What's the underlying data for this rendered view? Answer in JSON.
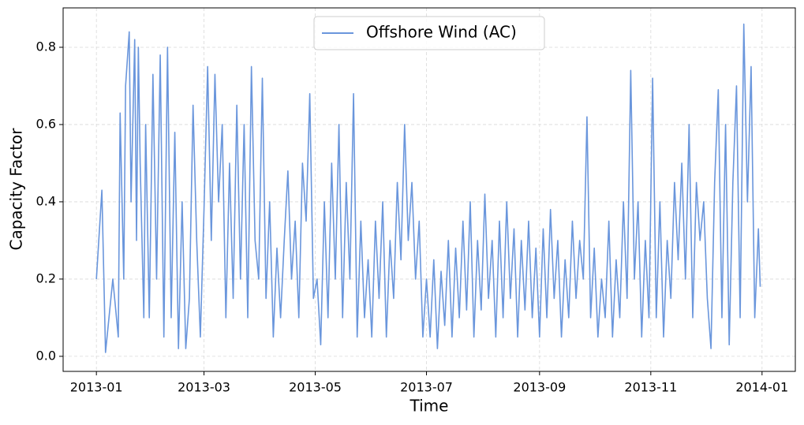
{
  "chart_data": {
    "type": "line",
    "xlabel": "Time",
    "ylabel": "Capacity Factor",
    "x": [
      0,
      3,
      5,
      9,
      12,
      13,
      15,
      16,
      18,
      19,
      21,
      22,
      23,
      24,
      26,
      27,
      29,
      31,
      33,
      35,
      37,
      39,
      41,
      43,
      45,
      47,
      49,
      51,
      53,
      55,
      57,
      59,
      61,
      63,
      65,
      67,
      69,
      71,
      73,
      75,
      77,
      79,
      81,
      83,
      85,
      87,
      89,
      91,
      93,
      95,
      97,
      99,
      101,
      103,
      105,
      107,
      109,
      111,
      113,
      115,
      117,
      119,
      121,
      123,
      125,
      127,
      129,
      131,
      133,
      135,
      137,
      139,
      141,
      143,
      145,
      147,
      149,
      151,
      153,
      155,
      157,
      159,
      161,
      163,
      165,
      167,
      169,
      171,
      173,
      175,
      177,
      179,
      181,
      183,
      185,
      187,
      189,
      191,
      193,
      195,
      197,
      199,
      201,
      203,
      205,
      207,
      209,
      211,
      213,
      215,
      217,
      219,
      221,
      223,
      225,
      227,
      229,
      231,
      233,
      235,
      237,
      239,
      241,
      243,
      245,
      247,
      249,
      251,
      253,
      255,
      257,
      259,
      261,
      263,
      265,
      267,
      269,
      271,
      273,
      275,
      277,
      279,
      281,
      283,
      285,
      287,
      289,
      291,
      293,
      295,
      297,
      299,
      301,
      303,
      305,
      307,
      309,
      311,
      313,
      315,
      317,
      319,
      321,
      323,
      325,
      327,
      329,
      331,
      333,
      335,
      337,
      339,
      341,
      343,
      345,
      347,
      349,
      351,
      353,
      355,
      357,
      359,
      361,
      363,
      364
    ],
    "series": [
      {
        "name": "Offshore Wind (AC)",
        "color": "#6a96dc",
        "values": [
          0.2,
          0.43,
          0.01,
          0.2,
          0.05,
          0.63,
          0.2,
          0.7,
          0.84,
          0.4,
          0.82,
          0.3,
          0.8,
          0.5,
          0.1,
          0.6,
          0.1,
          0.73,
          0.2,
          0.78,
          0.05,
          0.8,
          0.1,
          0.58,
          0.02,
          0.4,
          0.02,
          0.15,
          0.65,
          0.3,
          0.05,
          0.38,
          0.75,
          0.3,
          0.73,
          0.4,
          0.6,
          0.1,
          0.5,
          0.15,
          0.65,
          0.2,
          0.6,
          0.1,
          0.75,
          0.3,
          0.2,
          0.72,
          0.15,
          0.4,
          0.05,
          0.28,
          0.1,
          0.3,
          0.48,
          0.2,
          0.35,
          0.1,
          0.5,
          0.35,
          0.68,
          0.15,
          0.2,
          0.03,
          0.4,
          0.1,
          0.5,
          0.2,
          0.6,
          0.1,
          0.45,
          0.2,
          0.68,
          0.05,
          0.35,
          0.1,
          0.25,
          0.05,
          0.35,
          0.15,
          0.4,
          0.05,
          0.3,
          0.15,
          0.45,
          0.25,
          0.6,
          0.3,
          0.45,
          0.2,
          0.35,
          0.05,
          0.2,
          0.05,
          0.25,
          0.02,
          0.22,
          0.08,
          0.3,
          0.05,
          0.28,
          0.1,
          0.35,
          0.12,
          0.4,
          0.05,
          0.3,
          0.12,
          0.42,
          0.15,
          0.3,
          0.05,
          0.35,
          0.1,
          0.4,
          0.15,
          0.33,
          0.05,
          0.3,
          0.12,
          0.35,
          0.1,
          0.28,
          0.05,
          0.33,
          0.1,
          0.38,
          0.15,
          0.3,
          0.05,
          0.25,
          0.1,
          0.35,
          0.15,
          0.3,
          0.2,
          0.62,
          0.1,
          0.28,
          0.05,
          0.2,
          0.1,
          0.35,
          0.05,
          0.25,
          0.1,
          0.4,
          0.15,
          0.74,
          0.2,
          0.4,
          0.05,
          0.3,
          0.1,
          0.72,
          0.1,
          0.4,
          0.05,
          0.3,
          0.15,
          0.45,
          0.25,
          0.5,
          0.2,
          0.6,
          0.1,
          0.45,
          0.3,
          0.4,
          0.15,
          0.02,
          0.45,
          0.69,
          0.1,
          0.6,
          0.03,
          0.45,
          0.7,
          0.1,
          0.86,
          0.4,
          0.75,
          0.1,
          0.33,
          0.18
        ]
      }
    ],
    "xlim": [
      -18.25,
      383.25
    ],
    "xticks": [
      {
        "value": 0,
        "label": "2013-01"
      },
      {
        "value": 59,
        "label": "2013-03"
      },
      {
        "value": 120,
        "label": "2013-05"
      },
      {
        "value": 181,
        "label": "2013-07"
      },
      {
        "value": 243,
        "label": "2013-09"
      },
      {
        "value": 304,
        "label": "2013-11"
      },
      {
        "value": 365,
        "label": "2014-01"
      }
    ],
    "ylim": [
      -0.039,
      0.902
    ],
    "yticks": [
      {
        "value": 0,
        "label": "0.0"
      },
      0.2,
      0.4,
      0.6,
      0.8
    ],
    "grid": true,
    "legend": "upper center"
  }
}
